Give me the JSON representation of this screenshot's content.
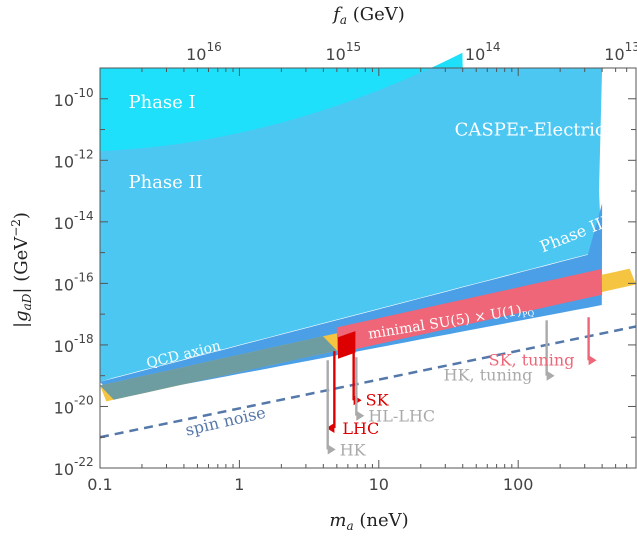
{
  "chart_data": {
    "type": "area",
    "xlabel_var": "m",
    "xlabel_sub": "a",
    "xlabel_unit": "(neV)",
    "ylabel_pre": "|g",
    "ylabel_sub": "aD",
    "ylabel_post": "|",
    "ylabel_unit": "(GeV",
    "ylabel_exp": "−2",
    "ylabel_close": ")",
    "top_label_var": "f",
    "top_label_sub": "a",
    "top_label_unit": "(GeV)",
    "x_scale": "log",
    "y_scale": "log",
    "xlim": [
      0.1,
      700
    ],
    "ylim": [
      1e-22,
      1e-09
    ],
    "x_ticks": [
      {
        "value": 0.1,
        "label": "0.1"
      },
      {
        "value": 1,
        "label": "1"
      },
      {
        "value": 10,
        "label": "10"
      },
      {
        "value": 100,
        "label": "100"
      }
    ],
    "y_ticks": [
      {
        "value": -10,
        "base": "10",
        "exp": "-10"
      },
      {
        "value": -12,
        "base": "10",
        "exp": "-12"
      },
      {
        "value": -14,
        "base": "10",
        "exp": "-14"
      },
      {
        "value": -16,
        "base": "10",
        "exp": "-16"
      },
      {
        "value": -18,
        "base": "10",
        "exp": "-18"
      },
      {
        "value": -20,
        "base": "10",
        "exp": "-20"
      },
      {
        "value": -22,
        "base": "10",
        "exp": "-22"
      }
    ],
    "top_ticks": [
      {
        "m_a": 0.6,
        "base": "10",
        "exp": "16"
      },
      {
        "m_a": 6.0,
        "base": "10",
        "exp": "15"
      },
      {
        "m_a": 60,
        "base": "10",
        "exp": "14"
      },
      {
        "m_a": 600,
        "base": "10",
        "exp": "13"
      }
    ],
    "regions": [
      {
        "name": "Phase I",
        "color": "#1fe0fb",
        "label_at": [
          0.16,
          -10.3
        ]
      },
      {
        "name": "Phase II",
        "color": "#4cc7f2",
        "label_at": [
          0.16,
          -12.9
        ]
      },
      {
        "name": "Phase III",
        "color": "#4a9fe6",
        "label_at": [
          150,
          -15.0
        ]
      },
      {
        "name": "CASPEr-Electric",
        "color": "#4cc7f2",
        "label_at": [
          35,
          -11.2
        ]
      }
    ],
    "bands": {
      "qcd_axion": {
        "label": "QCD axion",
        "color": "#f5c542",
        "slope_note": "g ∝ m_a",
        "y_at_0_1": -19.6,
        "half_width": 0.28
      },
      "minimal_su5": {
        "label_main": "minimal SU(5) × U(1)",
        "label_sub": "PQ",
        "color": "#ee6677",
        "x_range": [
          5,
          400
        ]
      }
    },
    "spin_noise": {
      "label": "spin noise",
      "color": "#5578aa",
      "points": [
        [
          0.1,
          -21.0
        ],
        [
          700,
          -17.4
        ]
      ]
    },
    "arrows": [
      {
        "label": "LHC",
        "color": "#dd0000",
        "x": 4.8,
        "y_top": -18.2,
        "y_end": -20.7,
        "tip_dx": -0.35
      },
      {
        "label": "SK",
        "color": "#dd0000",
        "x": 6.6,
        "y_top": -18.1,
        "y_end": -19.8,
        "tip_dx": 0.08
      },
      {
        "label": "HL-LHC",
        "color": "#aaaaaa",
        "x": 6.9,
        "y_top": -18.4,
        "y_end": -20.3,
        "tip_dx": 0.08
      },
      {
        "label": "HK",
        "color": "#aaaaaa",
        "x": 4.3,
        "y_top": -18.5,
        "y_end": -21.4,
        "tip_dx": 0.08
      },
      {
        "label": "SK, tuning",
        "color": "#ee6677",
        "x": 320,
        "y_top": -17.1,
        "y_end": -18.5,
        "tip_dx": 0.08
      },
      {
        "label": "HK, tuning",
        "color": "#aaaaaa",
        "x": 160,
        "y_top": -17.2,
        "y_end": -19.0,
        "tip_dx": 0.08
      }
    ]
  }
}
